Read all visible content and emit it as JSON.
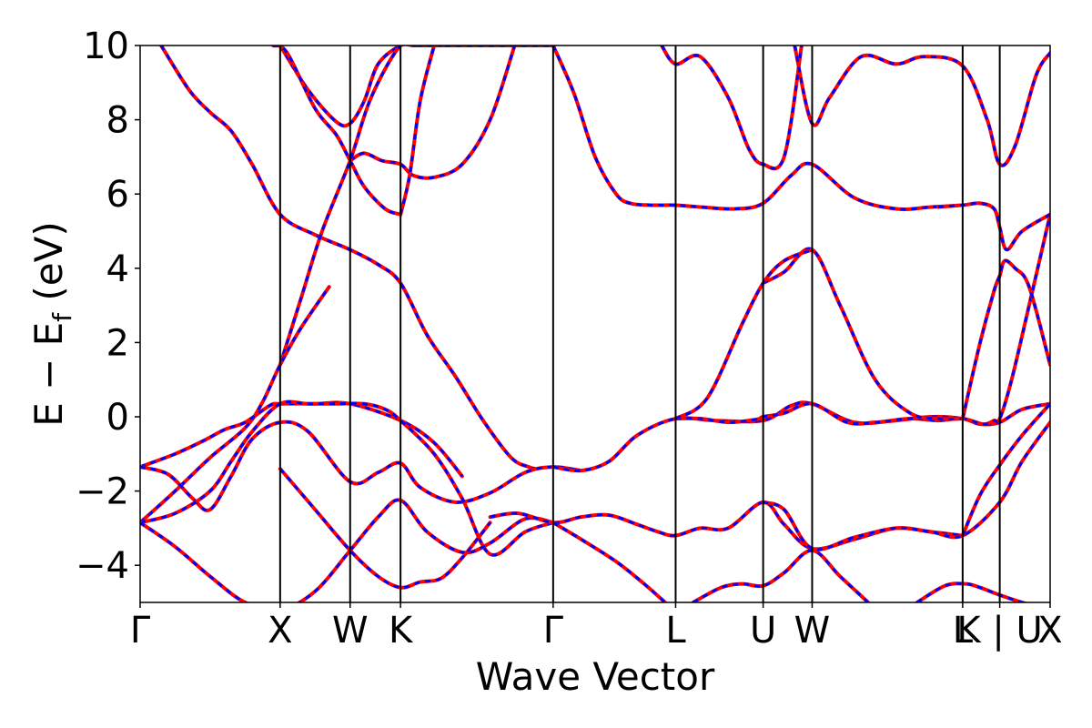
{
  "chart_data": {
    "type": "line",
    "title": "",
    "xlabel": "Wave Vector",
    "ylabel": "E − E",
    "ylabel_sub": "f",
    "ylabel_unit": " (eV)",
    "ylim": [
      -5,
      10
    ],
    "yticks": [
      -4,
      -2,
      0,
      2,
      4,
      6,
      8,
      10
    ],
    "ytick_labels": [
      "−4",
      "−2",
      "0",
      "2",
      "4",
      "6",
      "8",
      "10"
    ],
    "xlim": [
      0,
      13.0
    ],
    "kpoints": [
      {
        "label": "Γ",
        "x": 0.0
      },
      {
        "label": "X",
        "x": 2.0
      },
      {
        "label": "W",
        "x": 3.0
      },
      {
        "label": "K",
        "x": 3.72
      },
      {
        "label": "Γ",
        "x": 5.9
      },
      {
        "label": "L",
        "x": 7.65
      },
      {
        "label": "U",
        "x": 8.9
      },
      {
        "label": "W",
        "x": 9.6
      },
      {
        "label": "L",
        "x": 11.75
      },
      {
        "label": "K | U",
        "x": 12.28
      },
      {
        "label": "X",
        "x": 13.0
      }
    ],
    "grid": false,
    "legend": "none",
    "colors": {
      "series_red": "#ff0000",
      "series_blue": "#0000ff",
      "frame": "#000000"
    },
    "series": [
      {
        "x": [
          0.3,
          0.7,
          1.0,
          1.3,
          1.6,
          2.0,
          2.5,
          3.0,
          3.4,
          3.72,
          4.1,
          4.5,
          4.9,
          5.3,
          5.55,
          5.65
        ],
        "values": [
          10.0,
          8.8,
          8.2,
          7.7,
          6.8,
          5.45,
          4.9,
          4.5,
          4.1,
          3.6,
          2.2,
          1.1,
          -0.1,
          -1.1,
          -1.35,
          -1.4
        ]
      },
      {
        "x": [
          2.0,
          2.4,
          2.8,
          3.0,
          3.2,
          3.4,
          3.72,
          3.9,
          4.2,
          4.6,
          5.0,
          5.4,
          5.9
        ],
        "values": [
          10.0,
          8.8,
          7.95,
          7.9,
          8.5,
          9.5,
          10.0,
          10.0,
          10.0,
          10.0,
          10.0,
          10.0,
          10.0
        ]
      },
      {
        "x": [
          1.9,
          2.1,
          2.5,
          2.8,
          3.0,
          3.2,
          3.5,
          3.72
        ],
        "values": [
          10.0,
          9.8,
          8.3,
          7.6,
          6.9,
          6.2,
          5.6,
          5.45
        ]
      },
      {
        "x": [
          3.0,
          3.2,
          3.45,
          3.72,
          3.9,
          4.2,
          4.6,
          5.0,
          5.35
        ],
        "values": [
          6.9,
          7.1,
          6.9,
          6.8,
          6.5,
          6.45,
          6.8,
          8.0,
          10.0
        ]
      },
      {
        "x": [
          3.72,
          3.85,
          4.0,
          4.2
        ],
        "values": [
          5.45,
          6.5,
          8.5,
          10.0
        ]
      },
      {
        "x": [
          2.0,
          2.3,
          2.6,
          3.0,
          3.3,
          3.72,
          4.0,
          4.3
        ],
        "values": [
          1.4,
          3.2,
          5.0,
          6.9,
          8.6,
          10.0,
          10.0,
          10.0
        ]
      },
      {
        "x": [
          0.0,
          0.5,
          1.0,
          1.5,
          1.75,
          2.0,
          2.3,
          2.7
        ],
        "values": [
          -2.85,
          -2.0,
          -1.1,
          -0.3,
          0.4,
          1.4,
          2.4,
          3.5
        ]
      },
      {
        "x": [
          0.0,
          0.5,
          0.9,
          1.2,
          1.5,
          1.85,
          2.0,
          2.5,
          3.0,
          3.72,
          4.2,
          4.6
        ],
        "values": [
          -1.35,
          -1.0,
          -0.65,
          -0.35,
          -0.15,
          0.3,
          0.35,
          0.35,
          0.35,
          -0.1,
          -0.7,
          -1.6
        ]
      },
      {
        "x": [
          0.0,
          0.4,
          0.75,
          1.0,
          1.3,
          1.6,
          2.0,
          2.4,
          3.0,
          3.4,
          3.72,
          4.0,
          4.5,
          5.0,
          5.5,
          5.9,
          6.3
        ],
        "values": [
          -1.35,
          -1.55,
          -2.2,
          -2.5,
          -1.6,
          -0.6,
          -0.15,
          -0.4,
          -1.75,
          -1.5,
          -1.25,
          -1.9,
          -2.3,
          -2.05,
          -1.5,
          -1.35,
          -1.45
        ]
      },
      {
        "x": [
          0.0,
          0.5,
          1.0,
          1.3,
          1.6,
          2.0,
          2.4,
          2.8,
          3.2,
          3.5,
          3.72,
          4.2,
          4.6,
          5.0,
          5.5,
          5.9
        ],
        "values": [
          -2.85,
          -2.6,
          -2.0,
          -1.2,
          -0.4,
          0.35,
          0.35,
          0.35,
          0.35,
          0.2,
          -0.1,
          -1.0,
          -2.2,
          -3.7,
          -3.1,
          -2.85
        ]
      },
      {
        "x": [
          0.0,
          0.5,
          1.0,
          1.5,
          2.0,
          2.5,
          3.0,
          3.4,
          3.72,
          4.1,
          4.6,
          5.0,
          5.5,
          5.9
        ],
        "values": [
          -2.85,
          -3.5,
          -4.3,
          -5.0,
          -5.2,
          -4.7,
          -3.6,
          -2.7,
          -2.25,
          -3.1,
          -3.65,
          -3.4,
          -2.75,
          -2.85
        ]
      },
      {
        "x": [
          2.0,
          2.5,
          3.0,
          3.4,
          3.72,
          4.0,
          4.3,
          4.6,
          5.0
        ],
        "values": [
          -1.4,
          -2.5,
          -3.6,
          -4.3,
          -4.6,
          -4.45,
          -4.35,
          -3.8,
          -2.85
        ]
      },
      {
        "x": [
          5.0,
          5.4,
          5.9,
          6.3,
          6.7,
          7.1,
          7.4,
          7.65,
          8.0,
          8.4,
          8.9,
          9.2,
          9.6,
          10.2,
          10.8,
          11.3,
          11.75
        ],
        "values": [
          -2.7,
          -2.6,
          -2.85,
          -2.7,
          -2.65,
          -2.9,
          -3.1,
          -3.2,
          -3.0,
          -3.0,
          -2.3,
          -2.9,
          -3.55,
          -3.3,
          -3.0,
          -3.1,
          -3.2
        ]
      },
      {
        "x": [
          5.9,
          6.3,
          6.7,
          7.1,
          7.65,
          8.2,
          8.9,
          9.3,
          9.6,
          10.2,
          10.8,
          11.3,
          11.75,
          12.0,
          12.28,
          12.6,
          13.0
        ],
        "values": [
          -1.35,
          -1.45,
          -1.2,
          -0.5,
          -0.05,
          -0.1,
          -0.1,
          0.3,
          0.35,
          -0.15,
          -0.1,
          0.0,
          -0.05,
          -0.2,
          -0.15,
          0.2,
          0.35
        ]
      },
      {
        "x": [
          5.9,
          6.3,
          6.8,
          7.2,
          7.5
        ],
        "values": [
          -2.85,
          -3.3,
          -3.9,
          -4.5,
          -5.0
        ]
      },
      {
        "x": [
          5.9,
          6.2,
          6.5,
          6.8,
          7.0,
          7.3,
          7.65,
          8.0,
          8.5,
          8.9,
          9.3,
          9.6,
          10.2,
          10.8,
          11.3,
          11.75
        ],
        "values": [
          10.0,
          8.7,
          7.0,
          6.0,
          5.75,
          5.7,
          5.7,
          5.65,
          5.6,
          5.75,
          6.5,
          6.8,
          5.9,
          5.6,
          5.65,
          5.7
        ]
      },
      {
        "x": [
          7.65,
          8.0,
          8.4,
          8.7,
          8.85,
          8.9,
          9.2,
          9.6,
          10.1,
          10.5,
          11.0,
          11.4,
          11.75,
          12.05,
          12.2,
          12.28,
          12.45,
          12.7,
          13.0
        ],
        "values": [
          -0.05,
          -0.05,
          -0.15,
          -0.1,
          -0.05,
          0.0,
          0.1,
          0.35,
          -0.15,
          -0.15,
          -0.05,
          -0.1,
          -0.05,
          -0.2,
          -0.1,
          -0.05,
          1.0,
          3.0,
          5.45
        ]
      },
      {
        "x": [
          8.9,
          9.2,
          9.6,
          10.0,
          10.5,
          11.0,
          11.4,
          11.75
        ],
        "values": [
          3.6,
          3.9,
          4.5,
          3.0,
          1.0,
          0.1,
          -0.05,
          -0.05
        ]
      },
      {
        "x": [
          7.65,
          8.1,
          8.6,
          8.9,
          9.2,
          9.6
        ],
        "values": [
          -0.05,
          0.5,
          2.5,
          3.6,
          4.2,
          4.5
        ]
      },
      {
        "x": [
          11.75,
          12.0,
          12.2,
          12.28,
          12.35,
          12.5,
          12.7,
          13.0
        ],
        "values": [
          -0.05,
          2.0,
          3.4,
          3.8,
          4.2,
          4.0,
          3.5,
          1.4
        ]
      },
      {
        "x": [
          11.4,
          11.75,
          12.0,
          12.2,
          12.28,
          12.38,
          12.6,
          13.0
        ],
        "values": [
          5.65,
          5.7,
          5.75,
          5.6,
          5.1,
          4.5,
          5.0,
          5.45
        ]
      },
      {
        "x": [
          7.45,
          7.65,
          8.0,
          8.4,
          8.7,
          8.9,
          9.2,
          9.45
        ],
        "values": [
          10.0,
          9.5,
          9.7,
          8.6,
          7.2,
          6.8,
          7.0,
          10.0
        ]
      },
      {
        "x": [
          9.35,
          9.6,
          9.85,
          10.3,
          10.8,
          11.2,
          11.75,
          12.1,
          12.28,
          12.5,
          12.8,
          13.0
        ],
        "values": [
          10.0,
          7.9,
          8.6,
          9.7,
          9.5,
          9.7,
          9.45,
          8.0,
          6.8,
          7.3,
          9.2,
          9.8
        ]
      },
      {
        "x": [
          7.9,
          8.3,
          8.6,
          8.9,
          9.2,
          9.6,
          10.0,
          10.4
        ],
        "values": [
          -5.0,
          -4.6,
          -4.5,
          -4.55,
          -4.2,
          -3.6,
          -4.3,
          -5.0
        ]
      },
      {
        "x": [
          8.9,
          9.2,
          9.6,
          10.2,
          10.8,
          11.3,
          11.75,
          12.28,
          12.6,
          13.0
        ],
        "values": [
          -2.3,
          -2.5,
          -3.55,
          -3.25,
          -3.0,
          -3.1,
          -3.2,
          -2.3,
          -1.2,
          -0.15
        ]
      },
      {
        "x": [
          11.1,
          11.5,
          11.8,
          12.0,
          12.28,
          12.6,
          13.0
        ],
        "values": [
          -5.0,
          -4.55,
          -4.5,
          -4.6,
          -4.8,
          -5.0,
          -5.2
        ]
      },
      {
        "x": [
          11.75,
          12.0,
          12.28,
          12.6,
          13.0
        ],
        "values": [
          -3.2,
          -2.1,
          -1.3,
          -0.5,
          0.35
        ]
      }
    ]
  }
}
